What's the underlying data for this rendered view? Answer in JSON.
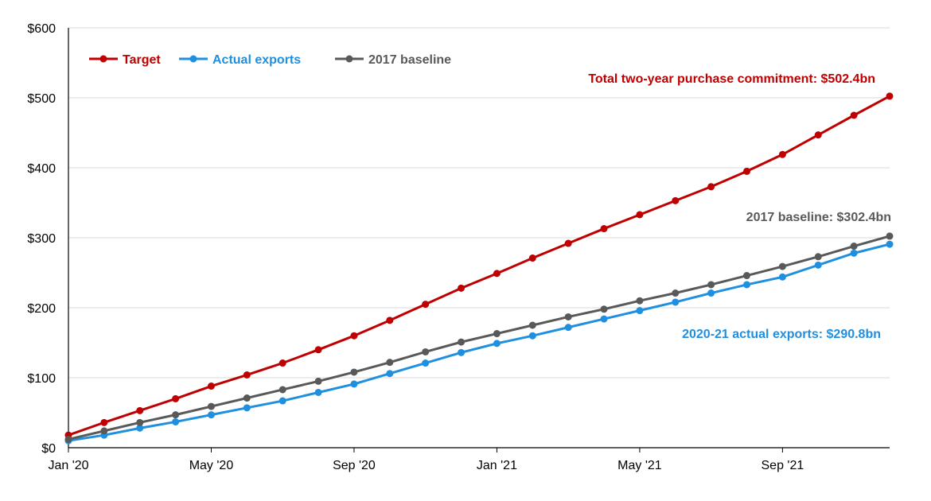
{
  "chart_data": {
    "type": "line",
    "x": [
      "2020-01",
      "2020-02",
      "2020-03",
      "2020-04",
      "2020-05",
      "2020-06",
      "2020-07",
      "2020-08",
      "2020-09",
      "2020-10",
      "2020-11",
      "2020-12",
      "2021-01",
      "2021-02",
      "2021-03",
      "2021-04",
      "2021-05",
      "2021-06",
      "2021-07",
      "2021-08",
      "2021-09",
      "2021-10",
      "2021-11",
      "2021-12"
    ],
    "x_tick_labels": [
      {
        "x": "2020-01",
        "label": "Jan '20"
      },
      {
        "x": "2020-05",
        "label": "May '20"
      },
      {
        "x": "2020-09",
        "label": "Sep '20"
      },
      {
        "x": "2021-01",
        "label": "Jan '21"
      },
      {
        "x": "2021-05",
        "label": "May '21"
      },
      {
        "x": "2021-09",
        "label": "Sep '21"
      }
    ],
    "y_ticks": [
      0,
      100,
      200,
      300,
      400,
      500,
      600
    ],
    "y_tick_labels": [
      "$0",
      "$100",
      "$200",
      "$300",
      "$400",
      "$500",
      "$600"
    ],
    "ylim": [
      0,
      600
    ],
    "grid": "horizontal",
    "legend_position": "top-left",
    "series": [
      {
        "name": "Target",
        "color": "#c00000",
        "values": [
          18,
          36,
          53,
          70,
          88,
          104,
          121,
          140,
          160,
          182,
          205,
          228,
          249,
          271,
          292,
          313,
          333,
          353,
          373,
          395,
          419,
          447,
          475,
          502.4
        ]
      },
      {
        "name": "Actual exports",
        "color": "#1f8fe0",
        "values": [
          10,
          18,
          28,
          37,
          47,
          57,
          67,
          79,
          91,
          106,
          121,
          136,
          149,
          160,
          172,
          184,
          196,
          208,
          221,
          233,
          244,
          261,
          278,
          290.8
        ]
      },
      {
        "name": "2017 baseline",
        "color": "#595959",
        "values": [
          12,
          24,
          36,
          47,
          59,
          71,
          83,
          95,
          108,
          122,
          137,
          151,
          163,
          175,
          187,
          198,
          210,
          221,
          233,
          246,
          259,
          273,
          288,
          302.4
        ]
      }
    ],
    "annotations": [
      {
        "series": 0,
        "text": "Total two-year purchase commitment: $502.4bn"
      },
      {
        "series": 2,
        "text": "2017 baseline: $302.4bn"
      },
      {
        "series": 1,
        "text": "2020-21 actual exports: $290.8bn"
      }
    ]
  }
}
